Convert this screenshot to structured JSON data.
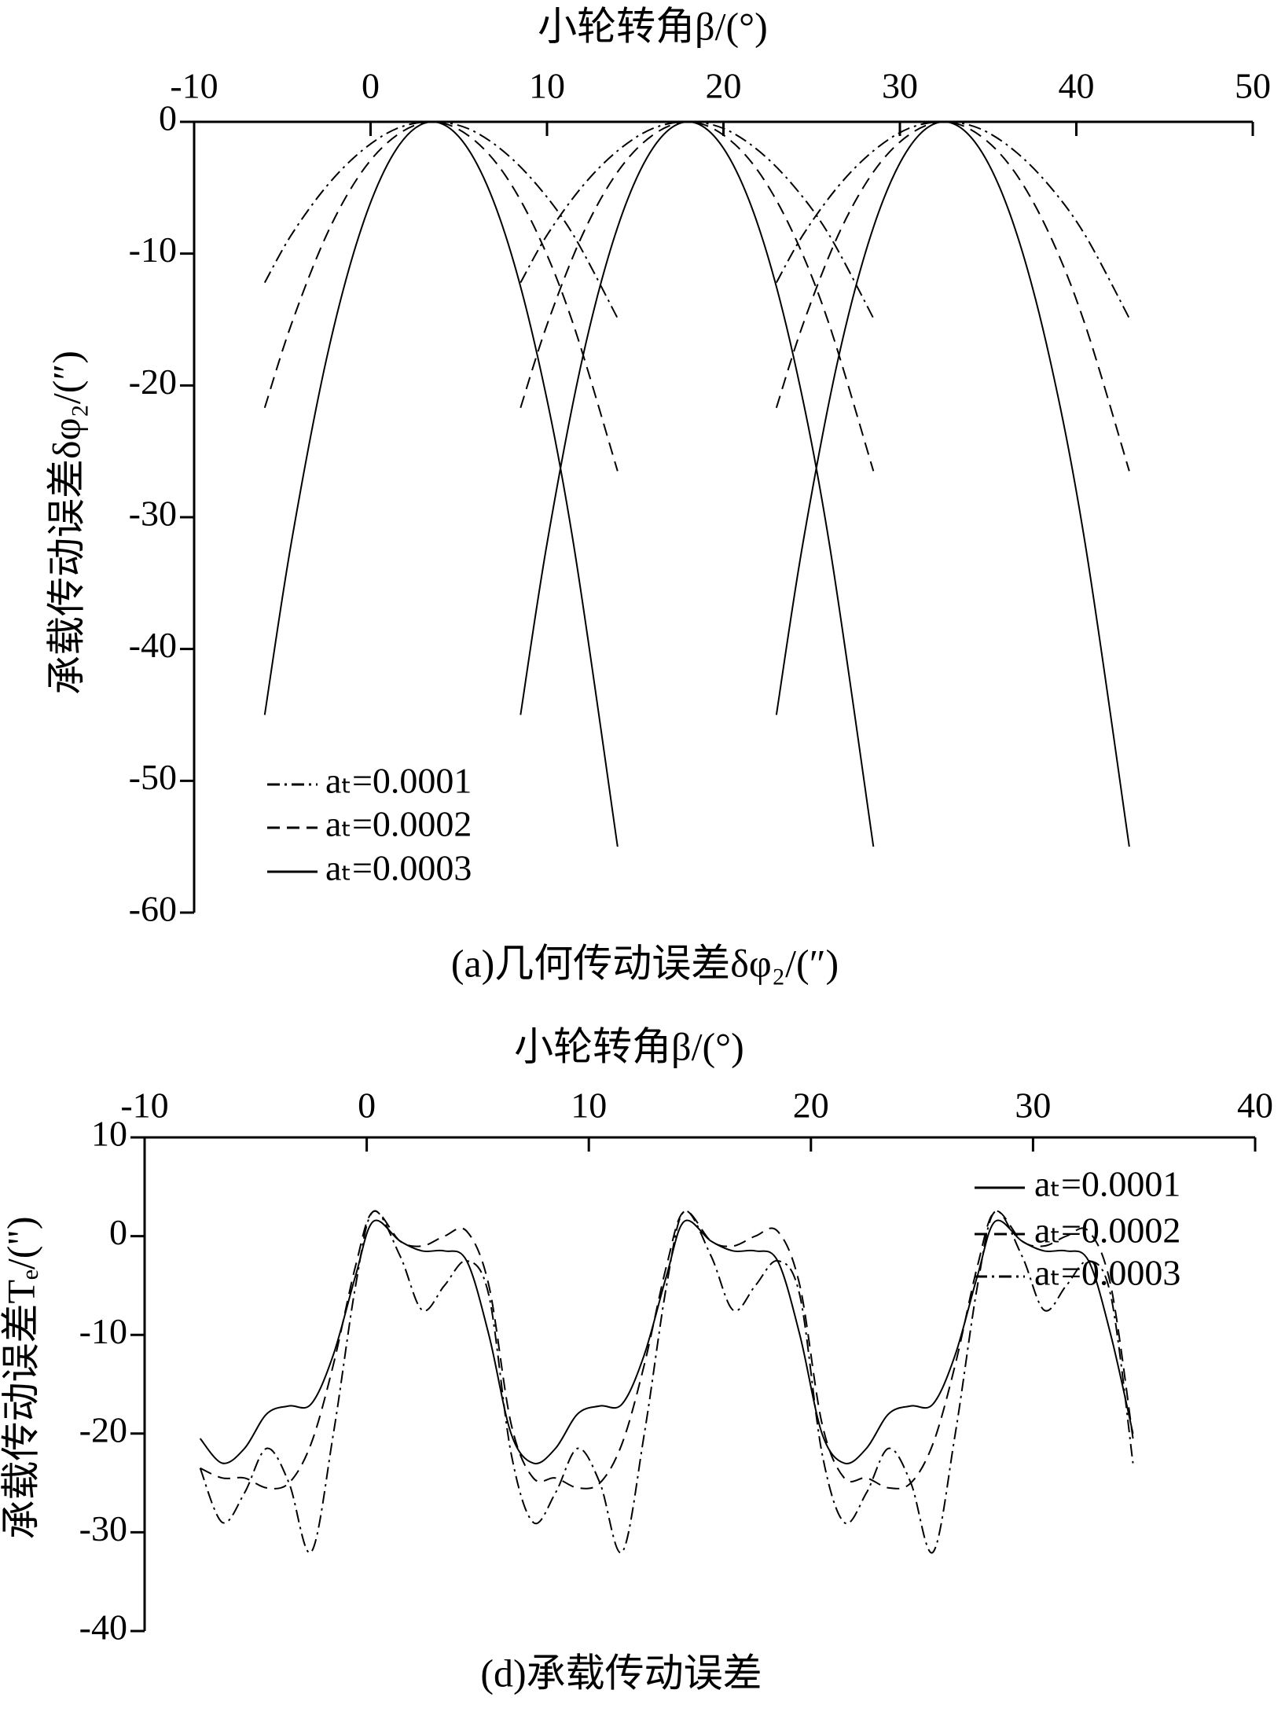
{
  "chart_data": [
    {
      "type": "line",
      "x_label": "小轮转角β/(°)",
      "y_label": "承载传动误差δφ₂/(″)",
      "caption": "(a)几何传动误差δφ₂/(″)",
      "xlim": [
        -10,
        50
      ],
      "xticks": [
        -10,
        0,
        10,
        20,
        30,
        40,
        50
      ],
      "ylim": [
        -60,
        0
      ],
      "yticks": [
        0,
        -10,
        -20,
        -30,
        -40,
        -50,
        -60
      ],
      "x": [
        -6,
        -4.5,
        -2.5,
        -0.5,
        1.5,
        3.5,
        5.5,
        7.5,
        9.5,
        11.5,
        14,
        null,
        8.5,
        10,
        12,
        14,
        16,
        18,
        20,
        22,
        24,
        26,
        28.5,
        null,
        23,
        24.5,
        26.5,
        28.5,
        30.5,
        32.5,
        34.5,
        36.5,
        38.5,
        40.5,
        43
      ],
      "series": [
        {
          "name": "aₜ=0.0001",
          "color": "#000000",
          "line_style": "dashdot",
          "values": [
            -12.2,
            -8.6,
            -4.9,
            -2.2,
            -0.5,
            0,
            -0.5,
            -2.2,
            -4.9,
            -8.6,
            -14.9,
            null,
            -12.2,
            -8.6,
            -4.9,
            -2.2,
            -0.5,
            0,
            -0.5,
            -2.2,
            -4.9,
            -8.6,
            -14.9,
            null,
            -12.2,
            -8.6,
            -4.9,
            -2.2,
            -0.5,
            0,
            -0.5,
            -2.2,
            -4.9,
            -8.6,
            -14.9
          ]
        },
        {
          "name": "aₜ=0.0002",
          "color": "#000000",
          "line_style": "dashed",
          "values": [
            -21.7,
            -15.4,
            -8.6,
            -3.8,
            -1,
            0,
            -1,
            -3.8,
            -8.6,
            -15.4,
            -26.5,
            null,
            -21.7,
            -15.4,
            -8.6,
            -3.8,
            -1,
            0,
            -1,
            -3.8,
            -8.6,
            -15.4,
            -26.5,
            null,
            -21.7,
            -15.4,
            -8.6,
            -3.8,
            -1,
            0,
            -1,
            -3.8,
            -8.6,
            -15.4,
            -26.5
          ]
        },
        {
          "name": "aₜ=0.0003",
          "color": "#000000",
          "line_style": "solid",
          "values": [
            -45,
            -32,
            -18,
            -8,
            -2,
            0,
            -2,
            -8,
            -18,
            -32,
            -55,
            null,
            -45,
            -32,
            -18,
            -8,
            -2,
            0,
            -2,
            -8,
            -18,
            -32,
            -55,
            null,
            -45,
            -32,
            -18,
            -8,
            -2,
            0,
            -2,
            -8,
            -18,
            -32,
            -55
          ]
        }
      ]
    },
    {
      "type": "line",
      "x_label": "小轮转角β/(°)",
      "y_label": "承载传动误差Tₑ/(\")",
      "caption": "(d)承载传动误差",
      "xlim": [
        -10,
        40
      ],
      "xticks": [
        -10,
        0,
        10,
        20,
        30,
        40
      ],
      "ylim": [
        -40,
        10
      ],
      "yticks": [
        10,
        0,
        -10,
        -20,
        -30,
        -40
      ],
      "x": [
        -7.5,
        -6.5,
        -5.5,
        -4.5,
        -3.5,
        -2.5,
        -1.5,
        -0.5,
        0.3,
        1.5,
        2.5,
        3.5,
        4.5,
        5.5,
        6.5,
        7.5,
        8.5,
        9.5,
        10.5,
        11.5,
        12.5,
        13.5,
        14.3,
        15.5,
        16.5,
        17.5,
        18.5,
        19.5,
        20.5,
        21.5,
        22.5,
        23.5,
        24.5,
        25.5,
        26.5,
        27.5,
        28.3,
        29.5,
        30.5,
        31.5,
        32.5,
        33.5,
        34.5
      ],
      "series": [
        {
          "name": "aₜ=0.0001",
          "color": "#000000",
          "line_style": "solid",
          "values": [
            -20.5,
            -23,
            -21.5,
            -18,
            -17.2,
            -17,
            -12,
            -4,
            1.5,
            -0.5,
            -1.5,
            -1.5,
            -2.5,
            -10,
            -20,
            -23,
            -21.5,
            -18,
            -17.2,
            -17,
            -12,
            -4,
            1.5,
            -0.5,
            -1.5,
            -1.5,
            -2.5,
            -10,
            -20,
            -23,
            -21.5,
            -18,
            -17.2,
            -17,
            -12,
            -4,
            1.5,
            -0.5,
            -1.5,
            -1.5,
            -2.5,
            -10,
            -20
          ]
        },
        {
          "name": "aₜ=0.0002",
          "color": "#000000",
          "line_style": "dashed",
          "values": [
            -23.5,
            -24.5,
            -24.5,
            -25.5,
            -25,
            -21,
            -13,
            -3,
            2.5,
            -0.5,
            -1,
            0,
            0.5,
            -5,
            -19,
            -24.5,
            -24.5,
            -25.5,
            -25,
            -21,
            -13,
            -3,
            2.5,
            -0.5,
            -1,
            0,
            0.5,
            -5,
            -19,
            -24.5,
            -24.5,
            -25.5,
            -25,
            -21,
            -13,
            -3,
            2.5,
            -0.5,
            -1,
            0,
            0.5,
            -5,
            -20.5
          ]
        },
        {
          "name": "aₜ=0.0003",
          "color": "#000000",
          "line_style": "dashdot",
          "values": [
            -23.5,
            -29,
            -26,
            -21.5,
            -25,
            -32,
            -20,
            -5,
            2.5,
            -2,
            -7.5,
            -5,
            -2.5,
            -6,
            -22,
            -29,
            -26,
            -21.5,
            -25,
            -32,
            -20,
            -5,
            2.5,
            -2,
            -7.5,
            -5,
            -2.5,
            -6,
            -22,
            -29,
            -26,
            -21.5,
            -25,
            -32,
            -20,
            -5,
            2.5,
            -2,
            -7.5,
            -5,
            -2.5,
            -6,
            -23
          ]
        }
      ]
    }
  ]
}
